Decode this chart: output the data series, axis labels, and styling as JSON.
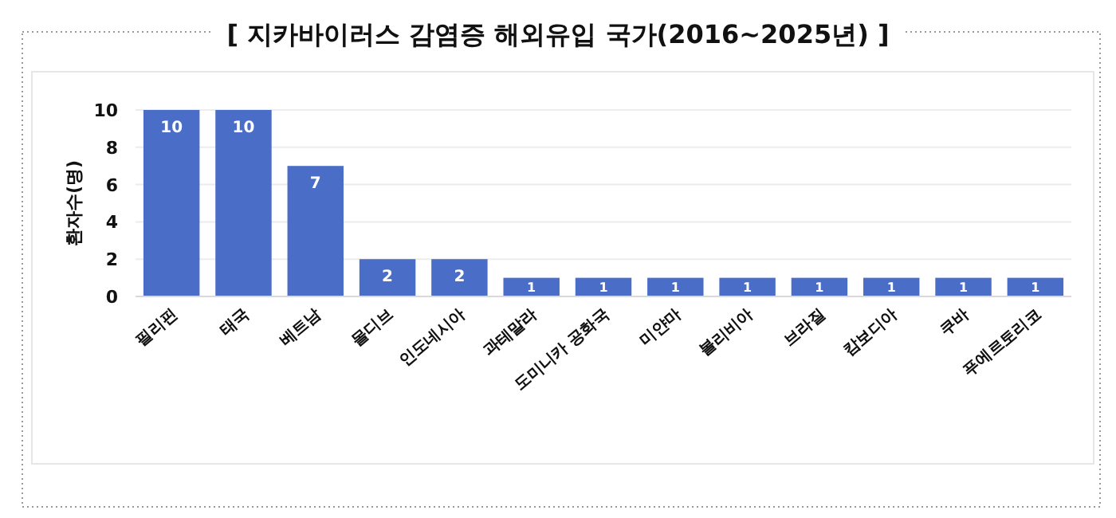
{
  "chart_data": {
    "type": "bar",
    "title": "[ 지카바이러스 감염증 해외유입 국가(2016~2025년) ]",
    "ylabel": "환자수(명)",
    "categories": [
      "필리핀",
      "태국",
      "베트남",
      "몰디브",
      "인도네시아",
      "과테말라",
      "도미니카 공화국",
      "미얀마",
      "볼리비아",
      "브라질",
      "캄보디아",
      "쿠바",
      "푸에르토리코"
    ],
    "values": [
      10,
      10,
      7,
      2,
      2,
      1,
      1,
      1,
      1,
      1,
      1,
      1,
      1
    ],
    "color": "#4a6ec8",
    "ylim": [
      0,
      10
    ],
    "yticks": [
      0,
      2,
      4,
      6,
      8,
      10
    ],
    "grid": "y",
    "data_labels": true
  }
}
